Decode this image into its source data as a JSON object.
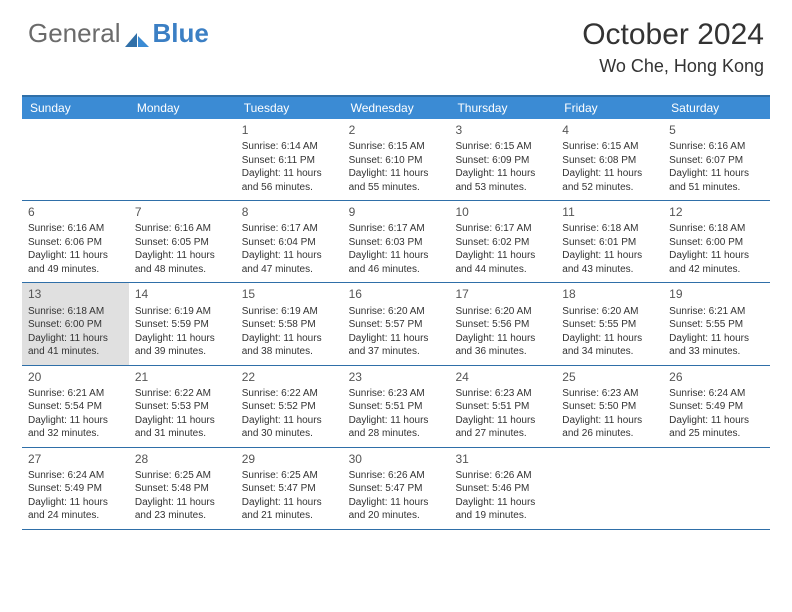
{
  "brand": {
    "part1": "General",
    "part2": "Blue"
  },
  "title": "October 2024",
  "location": "Wo Che, Hong Kong",
  "colors": {
    "header_bg": "#3b8bd4",
    "border": "#2f6fa8",
    "today_bg": "#e0e0e0",
    "text": "#333333",
    "header_text": "#ffffff"
  },
  "day_names": [
    "Sunday",
    "Monday",
    "Tuesday",
    "Wednesday",
    "Thursday",
    "Friday",
    "Saturday"
  ],
  "weeks": [
    [
      {
        "n": "",
        "sr": "",
        "ss": "",
        "dl1": "",
        "dl2": ""
      },
      {
        "n": "",
        "sr": "",
        "ss": "",
        "dl1": "",
        "dl2": ""
      },
      {
        "n": "1",
        "sr": "Sunrise: 6:14 AM",
        "ss": "Sunset: 6:11 PM",
        "dl1": "Daylight: 11 hours",
        "dl2": "and 56 minutes."
      },
      {
        "n": "2",
        "sr": "Sunrise: 6:15 AM",
        "ss": "Sunset: 6:10 PM",
        "dl1": "Daylight: 11 hours",
        "dl2": "and 55 minutes."
      },
      {
        "n": "3",
        "sr": "Sunrise: 6:15 AM",
        "ss": "Sunset: 6:09 PM",
        "dl1": "Daylight: 11 hours",
        "dl2": "and 53 minutes."
      },
      {
        "n": "4",
        "sr": "Sunrise: 6:15 AM",
        "ss": "Sunset: 6:08 PM",
        "dl1": "Daylight: 11 hours",
        "dl2": "and 52 minutes."
      },
      {
        "n": "5",
        "sr": "Sunrise: 6:16 AM",
        "ss": "Sunset: 6:07 PM",
        "dl1": "Daylight: 11 hours",
        "dl2": "and 51 minutes."
      }
    ],
    [
      {
        "n": "6",
        "sr": "Sunrise: 6:16 AM",
        "ss": "Sunset: 6:06 PM",
        "dl1": "Daylight: 11 hours",
        "dl2": "and 49 minutes."
      },
      {
        "n": "7",
        "sr": "Sunrise: 6:16 AM",
        "ss": "Sunset: 6:05 PM",
        "dl1": "Daylight: 11 hours",
        "dl2": "and 48 minutes."
      },
      {
        "n": "8",
        "sr": "Sunrise: 6:17 AM",
        "ss": "Sunset: 6:04 PM",
        "dl1": "Daylight: 11 hours",
        "dl2": "and 47 minutes."
      },
      {
        "n": "9",
        "sr": "Sunrise: 6:17 AM",
        "ss": "Sunset: 6:03 PM",
        "dl1": "Daylight: 11 hours",
        "dl2": "and 46 minutes."
      },
      {
        "n": "10",
        "sr": "Sunrise: 6:17 AM",
        "ss": "Sunset: 6:02 PM",
        "dl1": "Daylight: 11 hours",
        "dl2": "and 44 minutes."
      },
      {
        "n": "11",
        "sr": "Sunrise: 6:18 AM",
        "ss": "Sunset: 6:01 PM",
        "dl1": "Daylight: 11 hours",
        "dl2": "and 43 minutes."
      },
      {
        "n": "12",
        "sr": "Sunrise: 6:18 AM",
        "ss": "Sunset: 6:00 PM",
        "dl1": "Daylight: 11 hours",
        "dl2": "and 42 minutes."
      }
    ],
    [
      {
        "n": "13",
        "sr": "Sunrise: 6:18 AM",
        "ss": "Sunset: 6:00 PM",
        "dl1": "Daylight: 11 hours",
        "dl2": "and 41 minutes.",
        "today": true
      },
      {
        "n": "14",
        "sr": "Sunrise: 6:19 AM",
        "ss": "Sunset: 5:59 PM",
        "dl1": "Daylight: 11 hours",
        "dl2": "and 39 minutes."
      },
      {
        "n": "15",
        "sr": "Sunrise: 6:19 AM",
        "ss": "Sunset: 5:58 PM",
        "dl1": "Daylight: 11 hours",
        "dl2": "and 38 minutes."
      },
      {
        "n": "16",
        "sr": "Sunrise: 6:20 AM",
        "ss": "Sunset: 5:57 PM",
        "dl1": "Daylight: 11 hours",
        "dl2": "and 37 minutes."
      },
      {
        "n": "17",
        "sr": "Sunrise: 6:20 AM",
        "ss": "Sunset: 5:56 PM",
        "dl1": "Daylight: 11 hours",
        "dl2": "and 36 minutes."
      },
      {
        "n": "18",
        "sr": "Sunrise: 6:20 AM",
        "ss": "Sunset: 5:55 PM",
        "dl1": "Daylight: 11 hours",
        "dl2": "and 34 minutes."
      },
      {
        "n": "19",
        "sr": "Sunrise: 6:21 AM",
        "ss": "Sunset: 5:55 PM",
        "dl1": "Daylight: 11 hours",
        "dl2": "and 33 minutes."
      }
    ],
    [
      {
        "n": "20",
        "sr": "Sunrise: 6:21 AM",
        "ss": "Sunset: 5:54 PM",
        "dl1": "Daylight: 11 hours",
        "dl2": "and 32 minutes."
      },
      {
        "n": "21",
        "sr": "Sunrise: 6:22 AM",
        "ss": "Sunset: 5:53 PM",
        "dl1": "Daylight: 11 hours",
        "dl2": "and 31 minutes."
      },
      {
        "n": "22",
        "sr": "Sunrise: 6:22 AM",
        "ss": "Sunset: 5:52 PM",
        "dl1": "Daylight: 11 hours",
        "dl2": "and 30 minutes."
      },
      {
        "n": "23",
        "sr": "Sunrise: 6:23 AM",
        "ss": "Sunset: 5:51 PM",
        "dl1": "Daylight: 11 hours",
        "dl2": "and 28 minutes."
      },
      {
        "n": "24",
        "sr": "Sunrise: 6:23 AM",
        "ss": "Sunset: 5:51 PM",
        "dl1": "Daylight: 11 hours",
        "dl2": "and 27 minutes."
      },
      {
        "n": "25",
        "sr": "Sunrise: 6:23 AM",
        "ss": "Sunset: 5:50 PM",
        "dl1": "Daylight: 11 hours",
        "dl2": "and 26 minutes."
      },
      {
        "n": "26",
        "sr": "Sunrise: 6:24 AM",
        "ss": "Sunset: 5:49 PM",
        "dl1": "Daylight: 11 hours",
        "dl2": "and 25 minutes."
      }
    ],
    [
      {
        "n": "27",
        "sr": "Sunrise: 6:24 AM",
        "ss": "Sunset: 5:49 PM",
        "dl1": "Daylight: 11 hours",
        "dl2": "and 24 minutes."
      },
      {
        "n": "28",
        "sr": "Sunrise: 6:25 AM",
        "ss": "Sunset: 5:48 PM",
        "dl1": "Daylight: 11 hours",
        "dl2": "and 23 minutes."
      },
      {
        "n": "29",
        "sr": "Sunrise: 6:25 AM",
        "ss": "Sunset: 5:47 PM",
        "dl1": "Daylight: 11 hours",
        "dl2": "and 21 minutes."
      },
      {
        "n": "30",
        "sr": "Sunrise: 6:26 AM",
        "ss": "Sunset: 5:47 PM",
        "dl1": "Daylight: 11 hours",
        "dl2": "and 20 minutes."
      },
      {
        "n": "31",
        "sr": "Sunrise: 6:26 AM",
        "ss": "Sunset: 5:46 PM",
        "dl1": "Daylight: 11 hours",
        "dl2": "and 19 minutes."
      },
      {
        "n": "",
        "sr": "",
        "ss": "",
        "dl1": "",
        "dl2": ""
      },
      {
        "n": "",
        "sr": "",
        "ss": "",
        "dl1": "",
        "dl2": ""
      }
    ]
  ]
}
